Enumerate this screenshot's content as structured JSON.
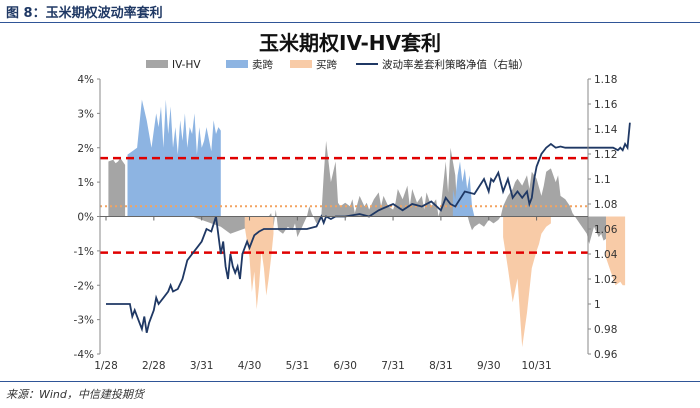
{
  "header": {
    "figure_title": "图 8：玉米期权波动率套利"
  },
  "footer": {
    "source": "来源：Wind，中信建投期货"
  },
  "chart_data": {
    "type": "area",
    "title": "玉米期权IV-HV套利",
    "categories": [
      "1/28",
      "2/28",
      "3/31",
      "4/30",
      "5/31",
      "6/30",
      "7/31",
      "8/31",
      "9/30",
      "10/31"
    ],
    "y_left": {
      "ticks": [
        "4%",
        "3%",
        "2%",
        "1%",
        "0%",
        "-1%",
        "-2%",
        "-3%",
        "-4%"
      ],
      "lim": [
        -4,
        4
      ]
    },
    "y_right": {
      "ticks": [
        "1.18",
        "1.16",
        "1.14",
        "1.12",
        "1.1",
        "1.08",
        "1.06",
        "1.04",
        "1.02",
        "1",
        "0.98",
        "0.96"
      ],
      "lim": [
        0.96,
        1.18
      ]
    },
    "legend": {
      "position": "top",
      "entries": [
        {
          "label": "IV-HV",
          "color": "#a5a5a5",
          "kind": "area"
        },
        {
          "label": "卖跨",
          "color": "#8db4e2",
          "kind": "area"
        },
        {
          "label": "买跨",
          "color": "#f8cba7",
          "kind": "area"
        },
        {
          "label": "波动率差套利策略净值（右轴）",
          "color": "#1f3864",
          "kind": "line"
        }
      ]
    },
    "reference_lines": [
      {
        "value": 1.7,
        "color": "#e00000",
        "style": "dashed"
      },
      {
        "value": -1.05,
        "color": "#e00000",
        "style": "dashed"
      },
      {
        "value": 0.3,
        "color": "#f4a460",
        "style": "dotted"
      }
    ],
    "series": [
      {
        "role": "gray",
        "color": "#a5a5a5",
        "x": [
          0.05,
          0.15,
          0.2,
          0.25,
          0.3,
          0.35,
          0.4,
          1.0,
          1.1,
          1.4,
          1.6,
          1.8,
          2.0,
          2.2,
          2.4,
          2.6,
          2.8,
          3.0,
          3.2,
          3.4,
          3.45,
          3.5,
          3.55,
          3.6,
          3.7,
          3.8,
          3.9,
          3.95,
          4.0,
          4.1,
          4.2,
          4.25,
          4.3,
          4.4,
          4.5,
          4.55,
          4.6,
          4.7,
          4.8,
          4.85,
          4.9,
          5.0,
          5.1,
          5.15,
          5.2,
          5.3,
          5.4,
          5.45,
          5.5,
          5.6,
          5.7,
          5.75,
          5.8,
          5.9,
          6.0,
          6.05,
          6.1,
          6.2,
          6.3,
          6.35,
          6.4,
          6.5,
          6.6,
          6.65,
          6.7,
          6.8,
          6.9,
          6.95,
          7.0,
          7.1,
          7.15,
          7.2,
          7.3,
          7.35,
          7.4,
          7.5,
          7.6,
          7.65,
          7.7,
          7.8,
          7.9,
          7.95,
          8.0,
          8.1,
          8.2,
          8.25,
          8.3,
          8.4,
          8.5,
          8.55,
          8.6,
          8.7,
          8.8,
          8.85,
          8.9,
          9.0,
          9.1,
          9.15,
          9.2,
          9.3,
          9.4,
          9.45,
          9.5,
          9.6,
          9.7,
          9.75,
          9.8,
          9.9,
          10.0,
          10.05,
          10.1,
          10.2,
          10.3,
          10.35,
          10.4,
          10.5,
          10.6,
          10.65
        ],
        "values": [
          1.6,
          1.65,
          1.55,
          1.6,
          1.7,
          1.6,
          1.5,
          0,
          0,
          0,
          0,
          0,
          -0.1,
          -0.2,
          -0.3,
          -0.5,
          -0.4,
          -0.3,
          0.0,
          0.0,
          0.1,
          -0.3,
          0.2,
          -0.4,
          -0.5,
          -0.3,
          -0.4,
          -0.2,
          -0.6,
          -0.3,
          0.0,
          0.3,
          0.1,
          -0.2,
          0.0,
          1.2,
          2.2,
          1.0,
          1.6,
          0.4,
          0.3,
          0.4,
          0.3,
          0.5,
          0.1,
          0.6,
          0.3,
          0.4,
          0.2,
          0.5,
          0.7,
          0.3,
          0.6,
          0.3,
          0.2,
          0.4,
          0.8,
          0.5,
          0.9,
          0.3,
          0.8,
          0.4,
          0.6,
          0.2,
          0.7,
          0.3,
          0.5,
          0.0,
          0.3,
          1.6,
          0.7,
          2.0,
          1.2,
          0.0,
          0.0,
          0.3,
          -0.2,
          -0.4,
          -0.3,
          -0.2,
          -0.3,
          -0.2,
          -0.1,
          -0.2,
          -0.1,
          0.0,
          0.3,
          0.6,
          0.8,
          1.0,
          1.1,
          0.9,
          1.2,
          0.8,
          1.3,
          1.1,
          0.6,
          0.9,
          1.3,
          1.4,
          1.0,
          1.2,
          0.6,
          0.5,
          0.3,
          0.1,
          0.0,
          -0.2,
          -0.4,
          -0.5,
          -0.8,
          -0.3,
          -0.6,
          -0.5,
          -0.7,
          -0.6,
          -0.4,
          -0.2
        ]
      },
      {
        "role": "sell",
        "color": "#8db4e2",
        "x": [
          0.45,
          0.55,
          0.65,
          0.75,
          0.85,
          0.95,
          1.0,
          1.05,
          1.1,
          1.15,
          1.2,
          1.25,
          1.3,
          1.35,
          1.4,
          1.45,
          1.5,
          1.55,
          1.6,
          1.65,
          1.7,
          1.75,
          1.8,
          1.85,
          1.9,
          1.95,
          2.0,
          2.05,
          2.1,
          2.2,
          2.25,
          2.3,
          2.35,
          2.4,
          7.25,
          7.3,
          7.35,
          7.4,
          7.45,
          7.5,
          7.55,
          7.6,
          7.65,
          7.7
        ],
        "values": [
          1.8,
          1.9,
          2.0,
          3.4,
          2.8,
          2.0,
          2.5,
          3.0,
          2.6,
          3.2,
          2.0,
          3.4,
          2.4,
          3.2,
          2.0,
          2.6,
          1.8,
          2.8,
          2.2,
          3.0,
          2.0,
          2.6,
          2.4,
          3.0,
          1.8,
          2.6,
          2.0,
          2.2,
          2.6,
          1.9,
          2.8,
          2.4,
          2.6,
          2.5,
          0.8,
          0.5,
          1.2,
          1.6,
          1.0,
          1.4,
          0.8,
          1.2,
          0.3,
          0.0
        ]
      },
      {
        "role": "buy",
        "color": "#f8cba7",
        "x": [
          2.9,
          3.0,
          3.05,
          3.1,
          3.15,
          3.2,
          3.25,
          3.3,
          3.35,
          3.4,
          3.45,
          3.5,
          8.3,
          8.4,
          8.5,
          8.6,
          8.7,
          8.8,
          8.9,
          9.0,
          9.05,
          9.1,
          9.2,
          9.3,
          10.45,
          10.55,
          10.65,
          10.75,
          10.8,
          10.85
        ],
        "values": [
          -0.3,
          -1.2,
          -2.2,
          -1.6,
          -2.7,
          -2.0,
          -1.0,
          -1.5,
          -2.3,
          -1.8,
          -1.2,
          -0.5,
          -0.6,
          -1.5,
          -2.5,
          -1.8,
          -3.8,
          -2.8,
          -1.5,
          -1.0,
          -0.8,
          -0.5,
          -0.3,
          -0.2,
          -1.2,
          -1.6,
          -2.0,
          -1.9,
          -2.0,
          -2.0
        ]
      },
      {
        "role": "nav",
        "axis": "right",
        "color": "#1f3864",
        "x": [
          0,
          0.5,
          0.55,
          0.6,
          0.7,
          0.75,
          0.8,
          0.85,
          0.9,
          1.0,
          1.05,
          1.1,
          1.2,
          1.3,
          1.35,
          1.4,
          1.5,
          1.6,
          1.7,
          1.8,
          1.9,
          2.0,
          2.1,
          2.2,
          2.3,
          2.35,
          2.4,
          2.45,
          2.5,
          2.55,
          2.6,
          2.65,
          2.7,
          2.75,
          2.8,
          2.85,
          2.9,
          2.95,
          3.0,
          3.05,
          3.1,
          3.2,
          3.3,
          3.5,
          3.7,
          3.9,
          4.0,
          4.2,
          4.4,
          4.5,
          4.55,
          4.6,
          4.7,
          4.8,
          4.9,
          5.0,
          5.3,
          5.5,
          5.7,
          6.0,
          6.2,
          6.4,
          6.6,
          6.8,
          7.0,
          7.1,
          7.2,
          7.3,
          7.5,
          7.7,
          7.9,
          8.0,
          8.05,
          8.1,
          8.2,
          8.3,
          8.4,
          8.5,
          8.6,
          8.7,
          8.8,
          8.85,
          8.9,
          8.95,
          9.0,
          9.1,
          9.2,
          9.3,
          9.4,
          9.5,
          9.6,
          9.8,
          10.0,
          10.2,
          10.4,
          10.6,
          10.7,
          10.75,
          10.8,
          10.85,
          10.9,
          10.95
        ],
        "values": [
          1.0,
          1.0,
          0.99,
          0.995,
          0.985,
          0.98,
          0.99,
          0.977,
          0.985,
          0.995,
          1.005,
          1.0,
          1.005,
          1.01,
          1.015,
          1.01,
          1.012,
          1.02,
          1.035,
          1.04,
          1.045,
          1.05,
          1.06,
          1.058,
          1.07,
          1.055,
          1.04,
          1.05,
          1.03,
          1.02,
          1.04,
          1.03,
          1.025,
          1.03,
          1.02,
          1.04,
          1.045,
          1.05,
          1.045,
          1.05,
          1.055,
          1.058,
          1.06,
          1.06,
          1.06,
          1.06,
          1.06,
          1.06,
          1.062,
          1.07,
          1.065,
          1.07,
          1.068,
          1.07,
          1.07,
          1.07,
          1.072,
          1.07,
          1.075,
          1.08,
          1.075,
          1.08,
          1.078,
          1.082,
          1.075,
          1.085,
          1.08,
          1.078,
          1.09,
          1.088,
          1.1,
          1.09,
          1.1,
          1.098,
          1.105,
          1.09,
          1.1,
          1.085,
          1.09,
          1.085,
          1.09,
          1.08,
          1.085,
          1.1,
          1.11,
          1.12,
          1.125,
          1.128,
          1.125,
          1.126,
          1.125,
          1.125,
          1.125,
          1.125,
          1.125,
          1.125,
          1.123,
          1.125,
          1.123,
          1.128,
          1.125,
          1.145
        ]
      }
    ]
  }
}
